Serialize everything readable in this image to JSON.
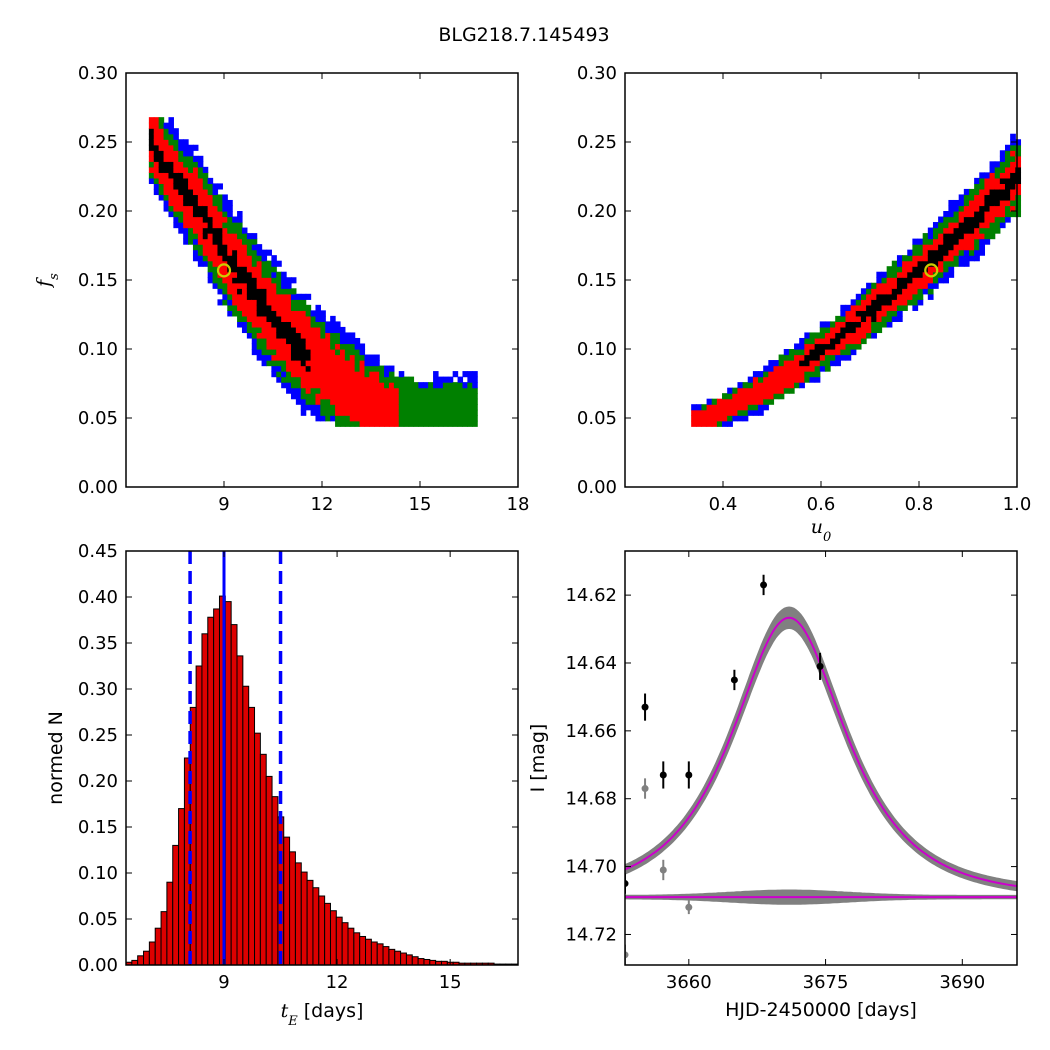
{
  "figure_title": "BLG218.7.145493",
  "colors": {
    "sigma1": "#000000",
    "sigma2": "#ff0000",
    "sigma3": "#008000",
    "sigma4": "#0000ff",
    "marker": "#cccc00",
    "hist_fill": "#dd0000",
    "vline": "#0000ff",
    "model": "#cc00cc",
    "band": "#808080"
  },
  "chart_data": [
    {
      "type": "heatmap",
      "panel": "tE-fs",
      "xlabel": "",
      "ylabel": "f_s",
      "ylabel_text": {
        "base": "f",
        "sub": "s"
      },
      "xlim": [
        6,
        18
      ],
      "ylim": [
        0,
        0.3
      ],
      "xticks": [
        "9",
        "12",
        "15",
        "18"
      ],
      "xtick_values": [
        9,
        12,
        15,
        18
      ],
      "yticks": [
        "0.00",
        "0.05",
        "0.10",
        "0.15",
        "0.20",
        "0.25",
        "0.30"
      ],
      "ytick_values": [
        0,
        0.05,
        0.1,
        0.15,
        0.2,
        0.25,
        0.3
      ],
      "best_fit": {
        "x": 9.0,
        "y": 0.157
      },
      "ridge": [
        [
          6.6,
          0.255
        ],
        [
          7.0,
          0.236
        ],
        [
          7.5,
          0.22
        ],
        [
          8.0,
          0.205
        ],
        [
          8.5,
          0.187
        ],
        [
          9.0,
          0.165
        ],
        [
          9.5,
          0.15
        ],
        [
          10.0,
          0.134
        ],
        [
          10.5,
          0.118
        ],
        [
          11.0,
          0.105
        ],
        [
          11.5,
          0.094
        ],
        [
          12.0,
          0.084
        ],
        [
          12.5,
          0.075
        ],
        [
          13.0,
          0.066
        ],
        [
          13.5,
          0.058
        ],
        [
          14.0,
          0.052
        ],
        [
          14.5,
          0.048
        ],
        [
          15.0,
          0.046
        ],
        [
          15.5,
          0.046
        ],
        [
          16.0,
          0.046
        ],
        [
          16.6,
          0.046
        ]
      ]
    },
    {
      "type": "heatmap",
      "panel": "u0-fs",
      "xlabel": "u_0",
      "xlabel_text": {
        "base": "u",
        "sub": "0"
      },
      "ylabel": "",
      "xlim": [
        0.2,
        1.0
      ],
      "ylim": [
        0,
        0.3
      ],
      "xticks": [
        "0.4",
        "0.6",
        "0.8",
        "1.0"
      ],
      "xtick_values": [
        0.4,
        0.6,
        0.8,
        1.0
      ],
      "yticks": [
        "0.00",
        "0.05",
        "0.10",
        "0.15",
        "0.20",
        "0.25",
        "0.30"
      ],
      "ytick_values": [
        0,
        0.05,
        0.1,
        0.15,
        0.2,
        0.25,
        0.3
      ],
      "best_fit": {
        "x": 0.825,
        "y": 0.157
      }
    },
    {
      "type": "bar",
      "panel": "tE-histogram",
      "xlabel": "t_E [days]",
      "xlabel_text": {
        "base": "t",
        "sub": "E",
        "rest": " [days]"
      },
      "ylabel": "normed N",
      "xlim": [
        6.4,
        16.8
      ],
      "ylim": [
        0,
        0.45
      ],
      "xticks": [
        "9",
        "12",
        "15"
      ],
      "xtick_values": [
        9,
        12,
        15
      ],
      "yticks": [
        "0.00",
        "0.05",
        "0.10",
        "0.15",
        "0.20",
        "0.25",
        "0.30",
        "0.35",
        "0.40",
        "0.45"
      ],
      "ytick_values": [
        0,
        0.05,
        0.1,
        0.15,
        0.2,
        0.25,
        0.3,
        0.35,
        0.4,
        0.45
      ],
      "bin_start": 6.4,
      "bin_width": 0.155,
      "values": [
        0.003,
        0.005,
        0.01,
        0.015,
        0.025,
        0.04,
        0.058,
        0.09,
        0.13,
        0.17,
        0.225,
        0.28,
        0.325,
        0.36,
        0.378,
        0.387,
        0.401,
        0.395,
        0.37,
        0.336,
        0.303,
        0.28,
        0.252,
        0.229,
        0.205,
        0.183,
        0.161,
        0.139,
        0.123,
        0.111,
        0.101,
        0.092,
        0.084,
        0.075,
        0.067,
        0.059,
        0.052,
        0.046,
        0.04,
        0.035,
        0.031,
        0.028,
        0.025,
        0.023,
        0.02,
        0.017,
        0.015,
        0.013,
        0.011,
        0.009,
        0.007,
        0.006,
        0.005,
        0.004,
        0.004,
        0.003,
        0.003,
        0.002,
        0.002,
        0.002,
        0.002,
        0.002,
        0.002,
        0.001,
        0.001,
        0.001,
        0.001
      ],
      "vlines": {
        "median": 9.0,
        "lower": 8.1,
        "upper": 10.5
      }
    },
    {
      "type": "line",
      "panel": "light-curve",
      "xlabel": "HJD-2450000 [days]",
      "ylabel": "I [mag]",
      "xlim": [
        3653.0,
        3696.0
      ],
      "ylim": [
        14.729,
        14.607
      ],
      "y_inverted": true,
      "xticks": [
        "3660",
        "3675",
        "3690"
      ],
      "xtick_values": [
        3660,
        3675,
        3690
      ],
      "yticks": [
        "14.62",
        "14.64",
        "14.66",
        "14.68",
        "14.70",
        "14.72"
      ],
      "ytick_values": [
        14.62,
        14.64,
        14.66,
        14.68,
        14.7,
        14.72
      ],
      "model": {
        "t0": 3671.0,
        "tE": 9.0,
        "u0": 0.825,
        "fs": 0.157,
        "baseline": 14.709
      },
      "points_black": [
        {
          "x": 3653.0,
          "y": 14.705,
          "err": 0.003
        },
        {
          "x": 3655.2,
          "y": 14.653,
          "err": 0.004
        },
        {
          "x": 3657.2,
          "y": 14.673,
          "err": 0.004
        },
        {
          "x": 3660.0,
          "y": 14.673,
          "err": 0.004
        },
        {
          "x": 3665.0,
          "y": 14.645,
          "err": 0.003
        },
        {
          "x": 3668.2,
          "y": 14.617,
          "err": 0.003
        },
        {
          "x": 3674.4,
          "y": 14.641,
          "err": 0.004
        }
      ],
      "points_gray": [
        {
          "x": 3653.0,
          "y": 14.726,
          "err": 0.003
        },
        {
          "x": 3655.2,
          "y": 14.677,
          "err": 0.003
        },
        {
          "x": 3657.2,
          "y": 14.701,
          "err": 0.003
        },
        {
          "x": 3660.0,
          "y": 14.712,
          "err": 0.002
        }
      ]
    }
  ]
}
